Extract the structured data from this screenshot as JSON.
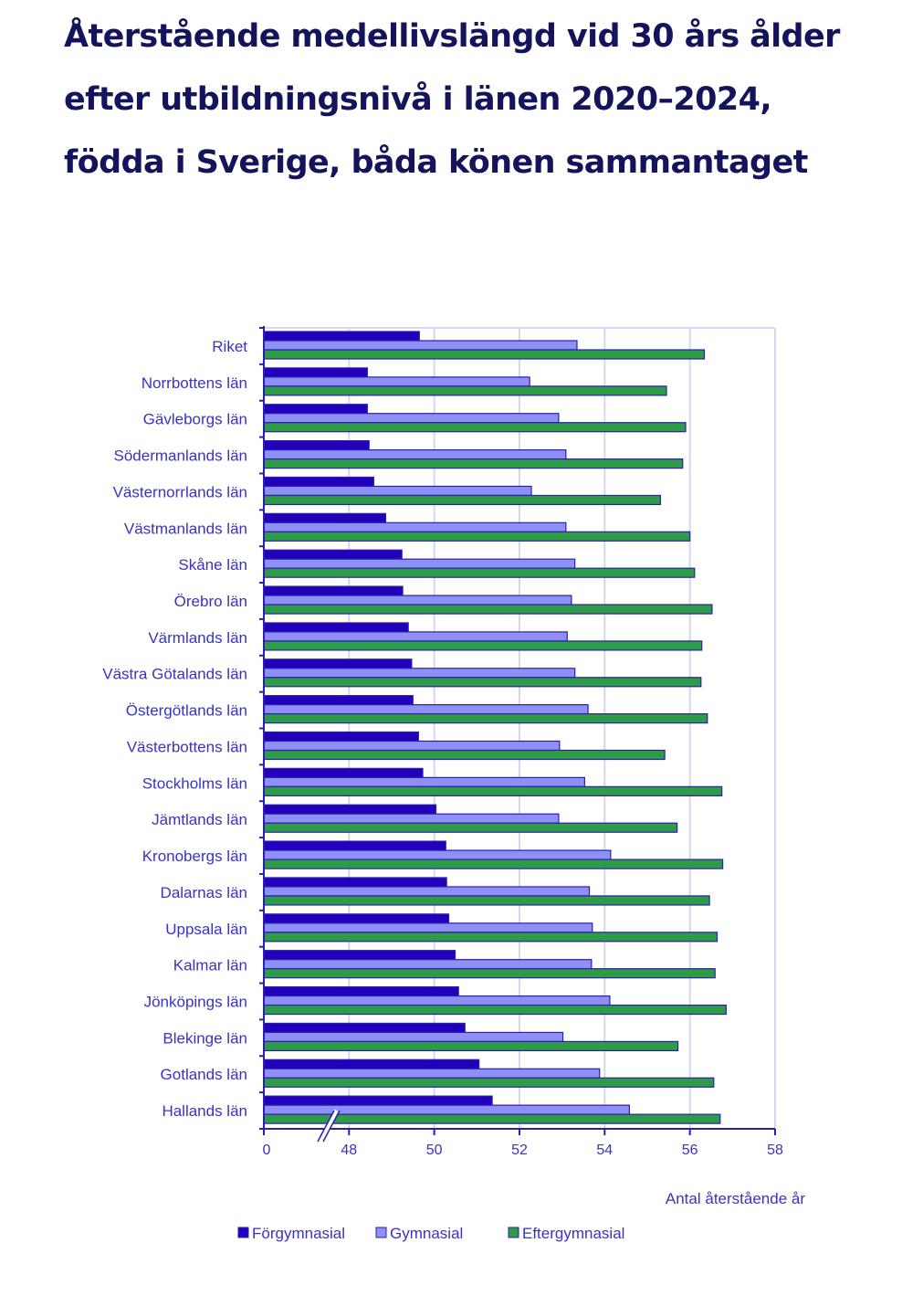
{
  "page": {
    "title": "Återstående medellivslängd vid 30 års ålder efter utbildningsnivå i länen 2020–2024, födda i Sverige, båda könen sammantaget"
  },
  "chart_data": {
    "type": "bar",
    "orientation": "horizontal",
    "title": "Återstående medellivslängd vid 30 års ålder efter utbildningsnivå i länen 2020–2024, födda i Sverige, båda könen sammantaget",
    "xlabel": "Antal återstående år",
    "ylabel": "",
    "xlim": [
      46,
      58
    ],
    "axis_break": {
      "from": 0,
      "to": 47
    },
    "x_ticks": [
      {
        "value": 0,
        "label": "0"
      },
      {
        "value": 48,
        "label": "48"
      },
      {
        "value": 50,
        "label": "50"
      },
      {
        "value": 52,
        "label": "52"
      },
      {
        "value": 54,
        "label": "54"
      },
      {
        "value": 56,
        "label": "56"
      },
      {
        "value": 58,
        "label": "58"
      }
    ],
    "grid": true,
    "legend_position": "bottom",
    "categories": [
      "Riket",
      "Norrbottens län",
      "Gävleborgs län",
      "Södermanlands län",
      "Västernorrlands län",
      "Västmanlands län",
      "Skåne län",
      "Örebro län",
      "Värmlands län",
      "Västra Götalands län",
      "Östergötlands län",
      "Västerbottens län",
      "Stockholms län",
      "Jämtlands län",
      "Kronobergs län",
      "Dalarnas län",
      "Uppsala län",
      "Kalmar län",
      "Jönköpings län",
      "Blekinge län",
      "Gotlands län",
      "Hallands län"
    ],
    "series": [
      {
        "name": "Förgymnasial",
        "color": "#2200bb",
        "values": [
          49.65,
          48.43,
          48.43,
          48.47,
          48.58,
          48.86,
          49.24,
          49.26,
          49.39,
          49.47,
          49.5,
          49.63,
          49.73,
          50.04,
          50.27,
          50.29,
          50.34,
          50.49,
          50.57,
          50.72,
          51.05,
          51.36
        ]
      },
      {
        "name": "Gymnasial",
        "color": "#8f90f5",
        "values": [
          53.35,
          52.24,
          52.92,
          53.09,
          52.28,
          53.09,
          53.3,
          53.22,
          53.12,
          53.3,
          53.61,
          52.94,
          53.53,
          52.92,
          54.14,
          53.64,
          53.71,
          53.69,
          54.12,
          53.02,
          53.88,
          54.58
        ]
      },
      {
        "name": "Eftergymnasial",
        "color": "#2e9b46",
        "values": [
          56.34,
          55.45,
          55.9,
          55.83,
          55.31,
          56.0,
          56.11,
          56.52,
          56.28,
          56.26,
          56.41,
          55.41,
          56.75,
          55.7,
          56.77,
          56.46,
          56.64,
          56.59,
          56.85,
          55.72,
          56.56,
          56.71
        ]
      }
    ]
  },
  "colors": {
    "title": "#14145c",
    "text": "#3a32c6",
    "axis": "#2a1fb0",
    "bar_border": "#2a1fb0",
    "grid": "#d6d6f2"
  }
}
